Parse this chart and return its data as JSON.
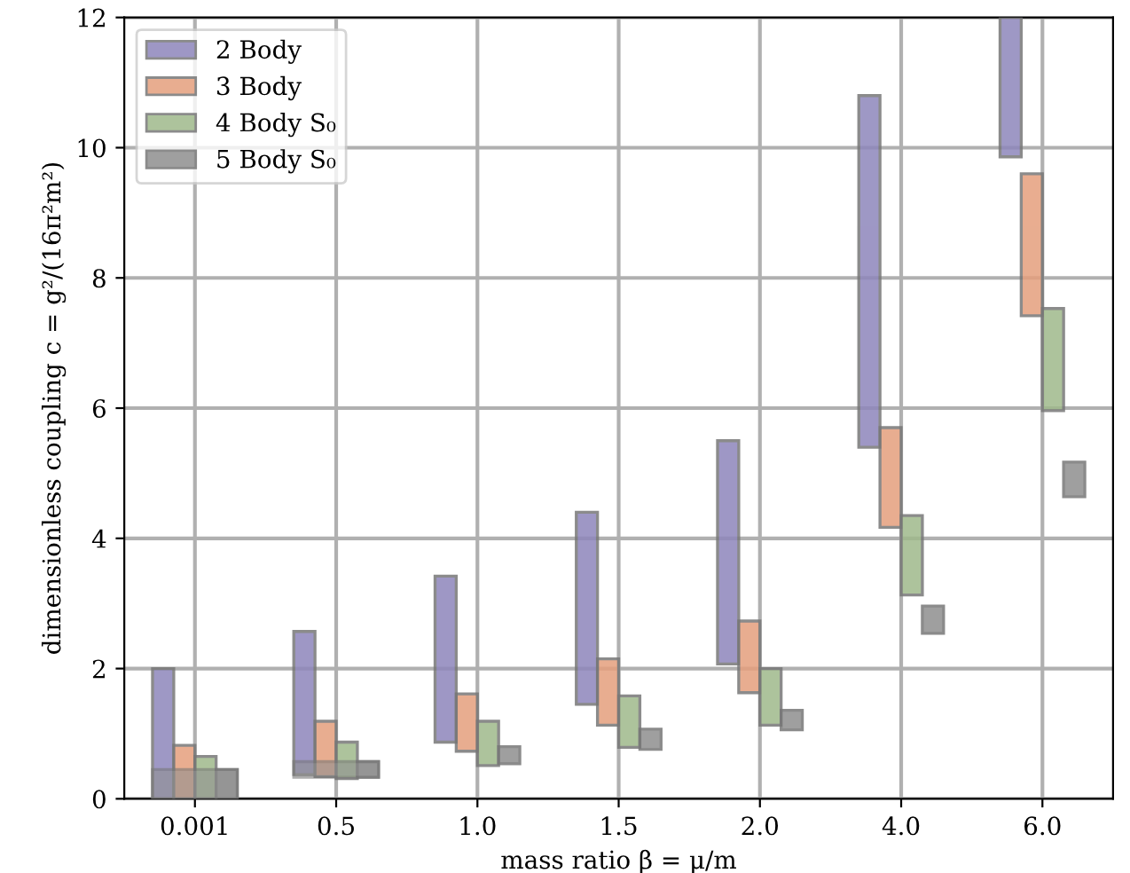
{
  "chart_data": {
    "type": "bar",
    "xlabel": "mass ratio β = μ/m",
    "ylabel": "dimensionless coupling c = g²/(16π²m²)",
    "categories": [
      "0.001",
      "0.5",
      "1.0",
      "1.5",
      "2.0",
      "4.0",
      "6.0"
    ],
    "ylim": [
      0,
      12
    ],
    "yticks": [
      0,
      2,
      4,
      6,
      8,
      10,
      12
    ],
    "grid": true,
    "legend": "top left",
    "series": [
      {
        "name": "2 Body",
        "color": "#8e86bb",
        "base": [
          0,
          0.37,
          0.87,
          1.45,
          2.07,
          5.4,
          9.86
        ],
        "values": [
          2.0,
          2.2,
          2.55,
          2.95,
          3.43,
          5.4,
          2.14
        ]
      },
      {
        "name": "3 Body",
        "color": "#e59f7d",
        "base": [
          0,
          0.34,
          0.73,
          1.13,
          1.63,
          4.17,
          7.42
        ],
        "values": [
          0.82,
          0.85,
          0.88,
          1.02,
          1.1,
          1.53,
          2.18
        ]
      },
      {
        "name": "4 Body S₀",
        "color": "#9fb98b",
        "base": [
          0,
          0.31,
          0.51,
          0.79,
          1.13,
          3.13,
          5.96
        ],
        "values": [
          0.65,
          0.56,
          0.68,
          0.79,
          0.87,
          1.22,
          1.57
        ]
      },
      {
        "name": "5 Body S₀",
        "color": "#8f8f8f",
        "base": [
          0,
          0.33,
          0.54,
          0.76,
          1.06,
          2.54,
          4.64
        ],
        "values": [
          0.45,
          0.24,
          0.26,
          0.31,
          0.3,
          0.42,
          0.53
        ]
      },
      {
        "color": "#8f8f8f",
        "base": [
          0,
          0.33,
          null,
          null,
          null,
          null,
          null
        ],
        "values": [
          0.45,
          0.24,
          null,
          null,
          null,
          null,
          null
        ]
      }
    ]
  }
}
